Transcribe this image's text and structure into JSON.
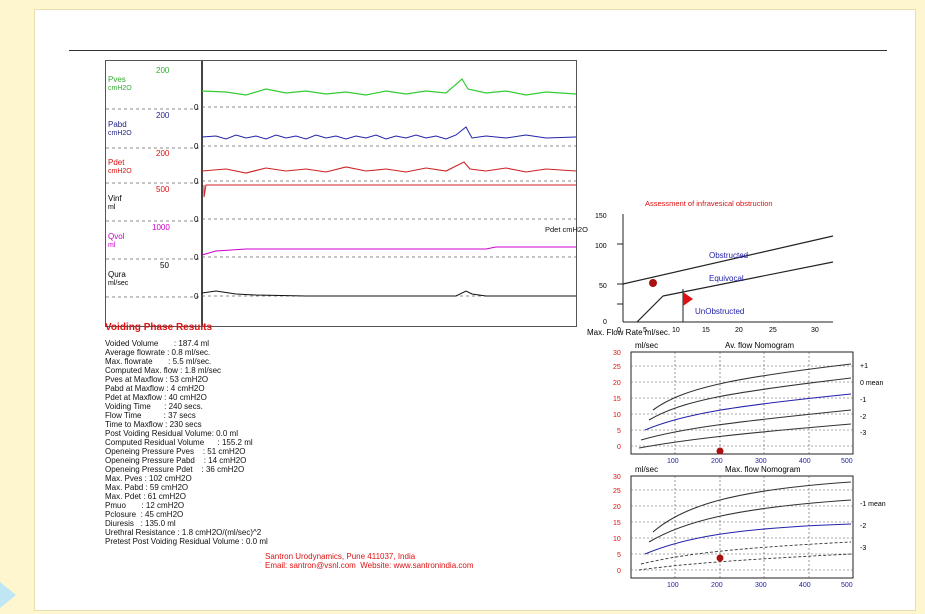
{
  "traces": {
    "channels": [
      {
        "name": "Pves",
        "unit": "cmH2O",
        "max": "200",
        "zero": "0",
        "color": "#3c3"
      },
      {
        "name": "Pabd",
        "unit": "cmH2O",
        "max": "200",
        "zero": "0",
        "color": "#22a"
      },
      {
        "name": "Pdet",
        "unit": "cmH2O",
        "max": "200",
        "zero": "0",
        "color": "#c22"
      },
      {
        "name": "Vinf",
        "unit": "ml",
        "max": "500",
        "zero": "0",
        "color": "#c22"
      },
      {
        "name": "Qvol",
        "unit": "ml",
        "max": "1000",
        "zero": "0",
        "color": "#c0c"
      },
      {
        "name": "Qura",
        "unit": "ml/sec",
        "max": "50",
        "zero": "0",
        "color": "#111"
      }
    ]
  },
  "results": {
    "title": "Voiding Phase Results",
    "rows": [
      "Voided Volume       : 187.4 ml",
      "Average flowrate : 0.8 ml/sec.",
      "Max. flowrate       : 5.5 ml/sec.",
      "Computed Max. flow : 1.8 ml/sec",
      "Pves at Maxflow : 53 cmH2O",
      "Pabd at Maxflow : 4 cmH2O",
      "Pdet at Maxflow : 40 cmH2O",
      "Voiding Time      : 240 secs.",
      "Flow Time          : 37 secs",
      "Time to Maxflow : 230 secs",
      "Post Voiding Residual Volume: 0.0 ml",
      "Computed Residual Volume      : 155.2 ml",
      "Openeing Pressure Pves    : 51 cmH2O",
      "Openeing Pressure Pabd    : 14 cmH2O",
      "Openeing Pressure Pdet    : 36 cmH2O",
      "Max. Pves : 102 cmH2O",
      "Max. Pabd : 59 cmH2O",
      "Max. Pdet : 61 cmH2O",
      "Pmuo       : 12 cmH2O",
      "Pclosure  : 45 cmH2O",
      "Diuresis   : 135.0 ml",
      "Urethral Resistance : 1.8 cmH2O/(ml/sec)^2",
      "Pretest Post Voiding Residual Volume : 0.0 ml"
    ]
  },
  "footer": {
    "line1": "Santron Urodynamics, Pune 411037, India",
    "line2": "Email: santron@vsnl.com  Website: www.santronindia.com"
  },
  "nomogram1": {
    "title": "Assessment of\ninfravesical obstruction",
    "ylabel": "Pdet\ncmH2O",
    "xlabel": "Max. Flow Rate ml/sec.",
    "yticks": [
      "150",
      "100",
      "50",
      "0"
    ],
    "xticks": [
      "0",
      "5",
      "10",
      "15",
      "20",
      "25",
      "30"
    ],
    "zones": [
      "Obstructed",
      "Equivocal",
      "UnObstructed"
    ]
  },
  "nomogram2": {
    "unit": "ml/sec",
    "title": "Av. flow Nomogram",
    "yticks": [
      "30",
      "25",
      "20",
      "15",
      "10",
      "5",
      "0"
    ],
    "xticks": [
      "100",
      "200",
      "300",
      "400",
      "500"
    ],
    "curves": [
      "+1",
      "0 mean",
      "-1",
      "-2",
      "-3"
    ]
  },
  "nomogram3": {
    "unit": "ml/sec",
    "title": "Max. flow Nomogram",
    "yticks": [
      "30",
      "25",
      "20",
      "15",
      "10",
      "5",
      "0"
    ],
    "xticks": [
      "100",
      "200",
      "300",
      "400",
      "500"
    ],
    "curves": [
      "-1 mean",
      "-2",
      "-3"
    ]
  }
}
